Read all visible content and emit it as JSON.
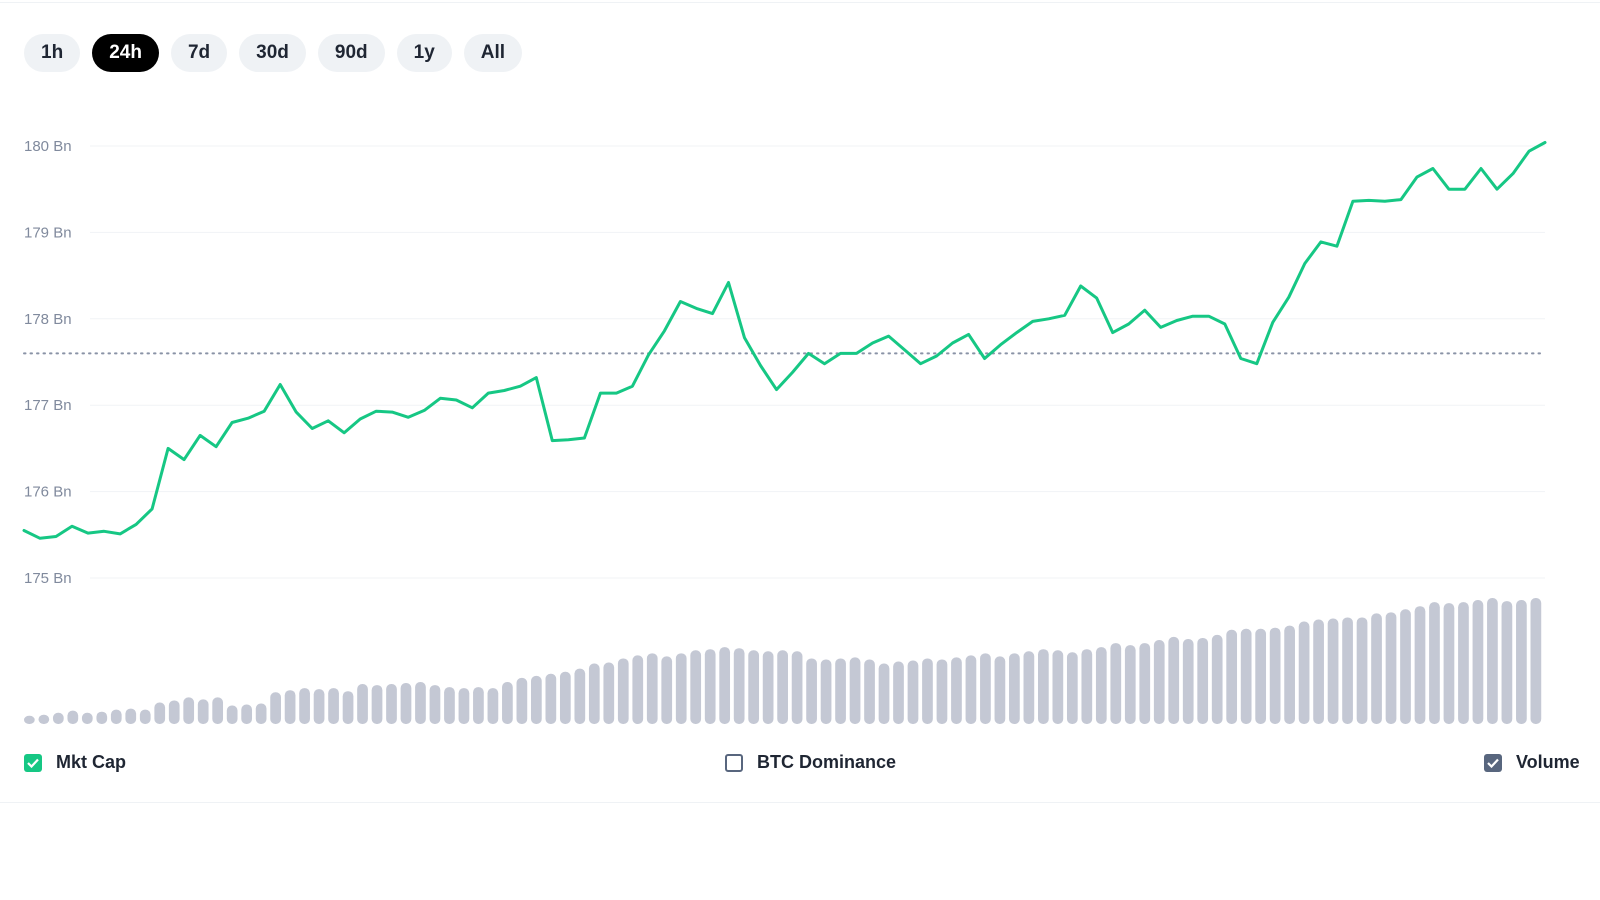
{
  "range_selector": {
    "options": [
      "1h",
      "24h",
      "7d",
      "30d",
      "90d",
      "1y",
      "All"
    ],
    "selected": "24h"
  },
  "legend": {
    "mkt_cap": {
      "label": "Mkt Cap",
      "checked": true,
      "color": "#16c784"
    },
    "btc_dominance": {
      "label": "BTC Dominance",
      "checked": false,
      "color": "#58667e"
    },
    "volume": {
      "label": "Volume",
      "checked": true,
      "color": "#58667e"
    }
  },
  "chart_data": {
    "type": "line",
    "y_ticks": [
      "180 Bn",
      "179 Bn",
      "178 Bn",
      "177 Bn",
      "176 Bn",
      "175 Bn"
    ],
    "ylim": [
      175,
      180
    ],
    "unit": "Bn",
    "grid": true,
    "reference_line": 177.6,
    "line_color": "#16c784",
    "volume_color": "#c4c8d4",
    "series": [
      {
        "values": [
          175.55,
          175.46,
          175.48,
          175.6,
          175.52,
          175.54,
          175.51,
          175.62,
          175.8,
          176.5,
          176.37,
          176.65,
          176.52,
          176.8,
          176.85,
          176.93,
          177.24,
          176.92,
          176.73,
          176.82,
          176.68,
          176.84,
          176.93,
          176.92,
          176.86,
          176.94,
          177.08,
          177.06,
          176.97,
          177.14,
          177.17,
          177.22,
          177.32,
          176.59,
          176.6,
          176.62,
          177.14,
          177.14,
          177.22,
          177.58,
          177.86,
          178.2,
          178.12,
          178.06,
          178.42,
          177.78,
          177.46,
          177.18,
          177.38,
          177.6,
          177.48,
          177.6,
          177.6,
          177.72,
          177.8,
          177.64,
          177.48,
          177.57,
          177.72,
          177.82,
          177.54,
          177.7,
          177.84,
          177.97,
          178.0,
          178.04,
          178.38,
          178.24,
          177.84,
          177.94,
          178.1,
          177.9,
          177.98,
          178.03,
          178.03,
          177.94,
          177.54,
          177.48,
          177.96,
          178.25,
          178.64,
          178.89,
          178.84,
          179.36,
          179.37,
          179.36,
          179.38,
          179.64,
          179.74,
          179.5,
          179.5,
          179.74,
          179.5,
          179.68,
          179.94,
          180.04
        ]
      }
    ],
    "volume": [
      0.08,
      0.09,
      0.11,
      0.13,
      0.11,
      0.12,
      0.14,
      0.15,
      0.14,
      0.21,
      0.23,
      0.26,
      0.24,
      0.26,
      0.18,
      0.19,
      0.2,
      0.31,
      0.33,
      0.35,
      0.34,
      0.35,
      0.32,
      0.39,
      0.38,
      0.39,
      0.4,
      0.41,
      0.38,
      0.36,
      0.35,
      0.36,
      0.35,
      0.41,
      0.45,
      0.47,
      0.49,
      0.51,
      0.54,
      0.59,
      0.6,
      0.64,
      0.67,
      0.69,
      0.66,
      0.69,
      0.72,
      0.73,
      0.75,
      0.74,
      0.72,
      0.71,
      0.72,
      0.71,
      0.64,
      0.63,
      0.64,
      0.65,
      0.63,
      0.59,
      0.61,
      0.62,
      0.64,
      0.63,
      0.65,
      0.67,
      0.69,
      0.66,
      0.69,
      0.71,
      0.73,
      0.72,
      0.7,
      0.73,
      0.75,
      0.79,
      0.77,
      0.79,
      0.82,
      0.85,
      0.83,
      0.84,
      0.87,
      0.92,
      0.93,
      0.93,
      0.94,
      0.96,
      1.0,
      1.02,
      1.03,
      1.04,
      1.04,
      1.08,
      1.09,
      1.12,
      1.15,
      1.19,
      1.18,
      1.19,
      1.21,
      1.23,
      1.2,
      1.21,
      1.23
    ]
  }
}
